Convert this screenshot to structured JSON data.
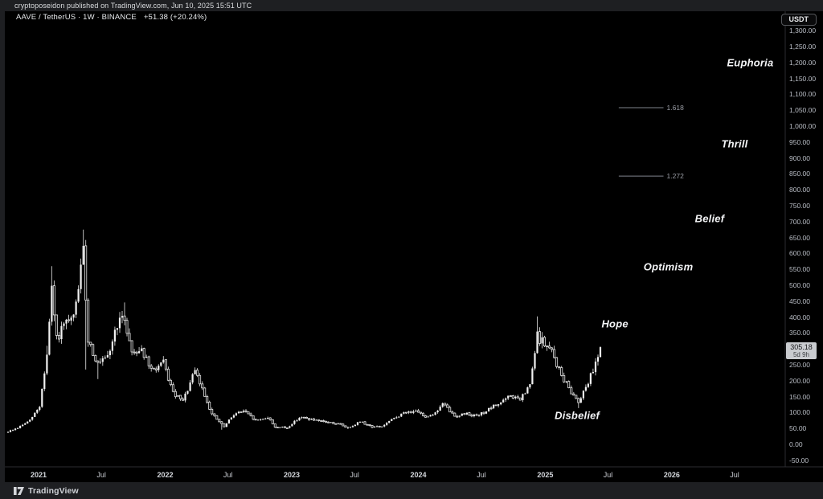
{
  "page": {
    "publish_line": "cryptoposeidon published on TradingView.com, Jun 10, 2025 15:51 UTC",
    "footer_brand": "TradingView"
  },
  "header": {
    "symbol_title": "AAVE / TetherUS · 1W · BINANCE",
    "change_text": "+51.38 (+20.24%)",
    "currency_button": "USDT"
  },
  "price_scale": {
    "current_price": "305.18",
    "countdown": "5d 9h",
    "tick_labels": [
      {
        "v": 1300,
        "label": "1,300.00"
      },
      {
        "v": 1250,
        "label": "1,250.00"
      },
      {
        "v": 1200,
        "label": "1,200.00"
      },
      {
        "v": 1150,
        "label": "1,150.00"
      },
      {
        "v": 1100,
        "label": "1,100.00"
      },
      {
        "v": 1050,
        "label": "1,050.00"
      },
      {
        "v": 1000,
        "label": "1,000.00"
      },
      {
        "v": 950,
        "label": "950.00"
      },
      {
        "v": 900,
        "label": "900.00"
      },
      {
        "v": 850,
        "label": "850.00"
      },
      {
        "v": 800,
        "label": "800.00"
      },
      {
        "v": 750,
        "label": "750.00"
      },
      {
        "v": 700,
        "label": "700.00"
      },
      {
        "v": 650,
        "label": "650.00"
      },
      {
        "v": 600,
        "label": "600.00"
      },
      {
        "v": 550,
        "label": "550.00"
      },
      {
        "v": 500,
        "label": "500.00"
      },
      {
        "v": 450,
        "label": "450.00"
      },
      {
        "v": 400,
        "label": "400.00"
      },
      {
        "v": 350,
        "label": "350.00"
      },
      {
        "v": 300,
        "label": "300.00"
      },
      {
        "v": 250,
        "label": "250.00"
      },
      {
        "v": 200,
        "label": "200.00"
      },
      {
        "v": 150,
        "label": "150.00"
      },
      {
        "v": 100,
        "label": "100.00"
      },
      {
        "v": 50,
        "label": "50.00"
      },
      {
        "v": 0,
        "label": "0.00"
      },
      {
        "v": -50,
        "label": "-50.00"
      }
    ]
  },
  "chart_data": {
    "type": "candlestick",
    "symbol": "AAVE/TetherUS",
    "exchange": "BINANCE",
    "timeframe": "1W",
    "last_price": 305.18,
    "change_abs": 51.38,
    "change_pct": 20.24,
    "y_axis": {
      "min": -50,
      "max": 1300,
      "step": 50,
      "grid": false
    },
    "x_axis": {
      "ticks": [
        {
          "label": "2021",
          "date": "2021-01-01",
          "year": true
        },
        {
          "label": "Jul",
          "date": "2021-07-01",
          "year": false
        },
        {
          "label": "2022",
          "date": "2022-01-01",
          "year": true
        },
        {
          "label": "Jul",
          "date": "2022-07-01",
          "year": false
        },
        {
          "label": "2023",
          "date": "2023-01-01",
          "year": true
        },
        {
          "label": "Jul",
          "date": "2023-07-01",
          "year": false
        },
        {
          "label": "2024",
          "date": "2024-01-01",
          "year": true
        },
        {
          "label": "Jul",
          "date": "2024-07-01",
          "year": false
        },
        {
          "label": "2025",
          "date": "2025-01-01",
          "year": true
        },
        {
          "label": "Jul",
          "date": "2025-07-01",
          "year": false
        },
        {
          "label": "2026",
          "date": "2026-01-01",
          "year": true
        },
        {
          "label": "Jul",
          "date": "2026-07-01",
          "year": false
        }
      ]
    },
    "series_start": "2020-10-05",
    "series_weeks": 245,
    "series_anchors": [
      [
        "2020-10-05",
        40
      ],
      [
        "2020-11-02",
        52
      ],
      [
        "2020-12-07",
        75
      ],
      [
        "2021-01-04",
        120
      ],
      [
        "2021-01-25",
        280
      ],
      [
        "2021-02-08",
        480
      ],
      [
        "2021-02-22",
        330
      ],
      [
        "2021-03-15",
        370
      ],
      [
        "2021-04-12",
        395
      ],
      [
        "2021-05-10",
        600
      ],
      [
        "2021-05-24",
        330
      ],
      [
        "2021-06-21",
        250
      ],
      [
        "2021-07-19",
        270
      ],
      [
        "2021-08-16",
        380
      ],
      [
        "2021-09-06",
        395
      ],
      [
        "2021-09-27",
        290
      ],
      [
        "2021-10-25",
        300
      ],
      [
        "2021-11-22",
        230
      ],
      [
        "2021-12-27",
        255
      ],
      [
        "2022-01-24",
        160
      ],
      [
        "2022-02-21",
        135
      ],
      [
        "2022-03-28",
        230
      ],
      [
        "2022-04-25",
        155
      ],
      [
        "2022-05-16",
        95
      ],
      [
        "2022-06-20",
        55
      ],
      [
        "2022-07-18",
        95
      ],
      [
        "2022-08-15",
        105
      ],
      [
        "2022-09-19",
        75
      ],
      [
        "2022-10-24",
        85
      ],
      [
        "2022-11-14",
        55
      ],
      [
        "2022-12-19",
        52
      ],
      [
        "2023-01-23",
        85
      ],
      [
        "2023-02-20",
        80
      ],
      [
        "2023-03-20",
        72
      ],
      [
        "2023-04-17",
        70
      ],
      [
        "2023-05-22",
        62
      ],
      [
        "2023-06-12",
        52
      ],
      [
        "2023-07-17",
        72
      ],
      [
        "2023-08-21",
        55
      ],
      [
        "2023-09-18",
        56
      ],
      [
        "2023-10-23",
        82
      ],
      [
        "2023-11-20",
        98
      ],
      [
        "2023-12-18",
        105
      ],
      [
        "2024-01-22",
        88
      ],
      [
        "2024-02-19",
        98
      ],
      [
        "2024-03-11",
        128
      ],
      [
        "2024-04-15",
        88
      ],
      [
        "2024-05-20",
        98
      ],
      [
        "2024-06-17",
        88
      ],
      [
        "2024-07-15",
        105
      ],
      [
        "2024-08-19",
        128
      ],
      [
        "2024-09-23",
        152
      ],
      [
        "2024-10-21",
        140
      ],
      [
        "2024-11-18",
        185
      ],
      [
        "2024-12-09",
        340
      ],
      [
        "2025-01-20",
        290
      ],
      [
        "2025-02-17",
        215
      ],
      [
        "2025-03-17",
        165
      ],
      [
        "2025-04-07",
        135
      ],
      [
        "2025-05-12",
        215
      ],
      [
        "2025-06-09",
        305.18
      ]
    ],
    "series_spikes": [
      {
        "date": "2021-01-25",
        "high": 310
      },
      {
        "date": "2021-02-08",
        "high": 560
      },
      {
        "date": "2021-05-10",
        "high": 675
      },
      {
        "date": "2021-05-17",
        "low": 235
      },
      {
        "date": "2021-06-21",
        "low": 205
      },
      {
        "date": "2021-09-06",
        "high": 446
      },
      {
        "date": "2022-03-28",
        "high": 240
      },
      {
        "date": "2022-06-13",
        "low": 46
      },
      {
        "date": "2023-06-12",
        "low": 48
      },
      {
        "date": "2024-12-09",
        "high": 402
      },
      {
        "date": "2025-04-07",
        "low": 114
      }
    ],
    "fib_levels": [
      {
        "label": "1.618",
        "price": 1058,
        "from": "2025-08-01",
        "to": "2025-12-08"
      },
      {
        "label": "1.272",
        "price": 843,
        "from": "2025-08-01",
        "to": "2025-12-08"
      }
    ],
    "annotations": [
      {
        "label": "Euphoria",
        "date": "2026-08-15",
        "price": 1200
      },
      {
        "label": "Thrill",
        "date": "2026-07-01",
        "price": 945
      },
      {
        "label": "Belief",
        "date": "2026-04-20",
        "price": 710
      },
      {
        "label": "Optimism",
        "date": "2025-12-22",
        "price": 558
      },
      {
        "label": "Hope",
        "date": "2025-07-21",
        "price": 380
      },
      {
        "label": "Disbelief",
        "date": "2025-04-03",
        "price": 91
      }
    ],
    "colors": {
      "background": "#000000",
      "frame": "#1e1f22",
      "candle_up": "#f2f2f2",
      "candle_down_fill": "#0a0a0a",
      "candle_outline": "#e2e2e2",
      "wick": "#cfcfcf",
      "axis_text": "#babec6",
      "fib_line": "#7f838c",
      "separator": "#2b2d31",
      "badge_bg": "#c9cbcf",
      "badge_text": "#17181a"
    }
  }
}
